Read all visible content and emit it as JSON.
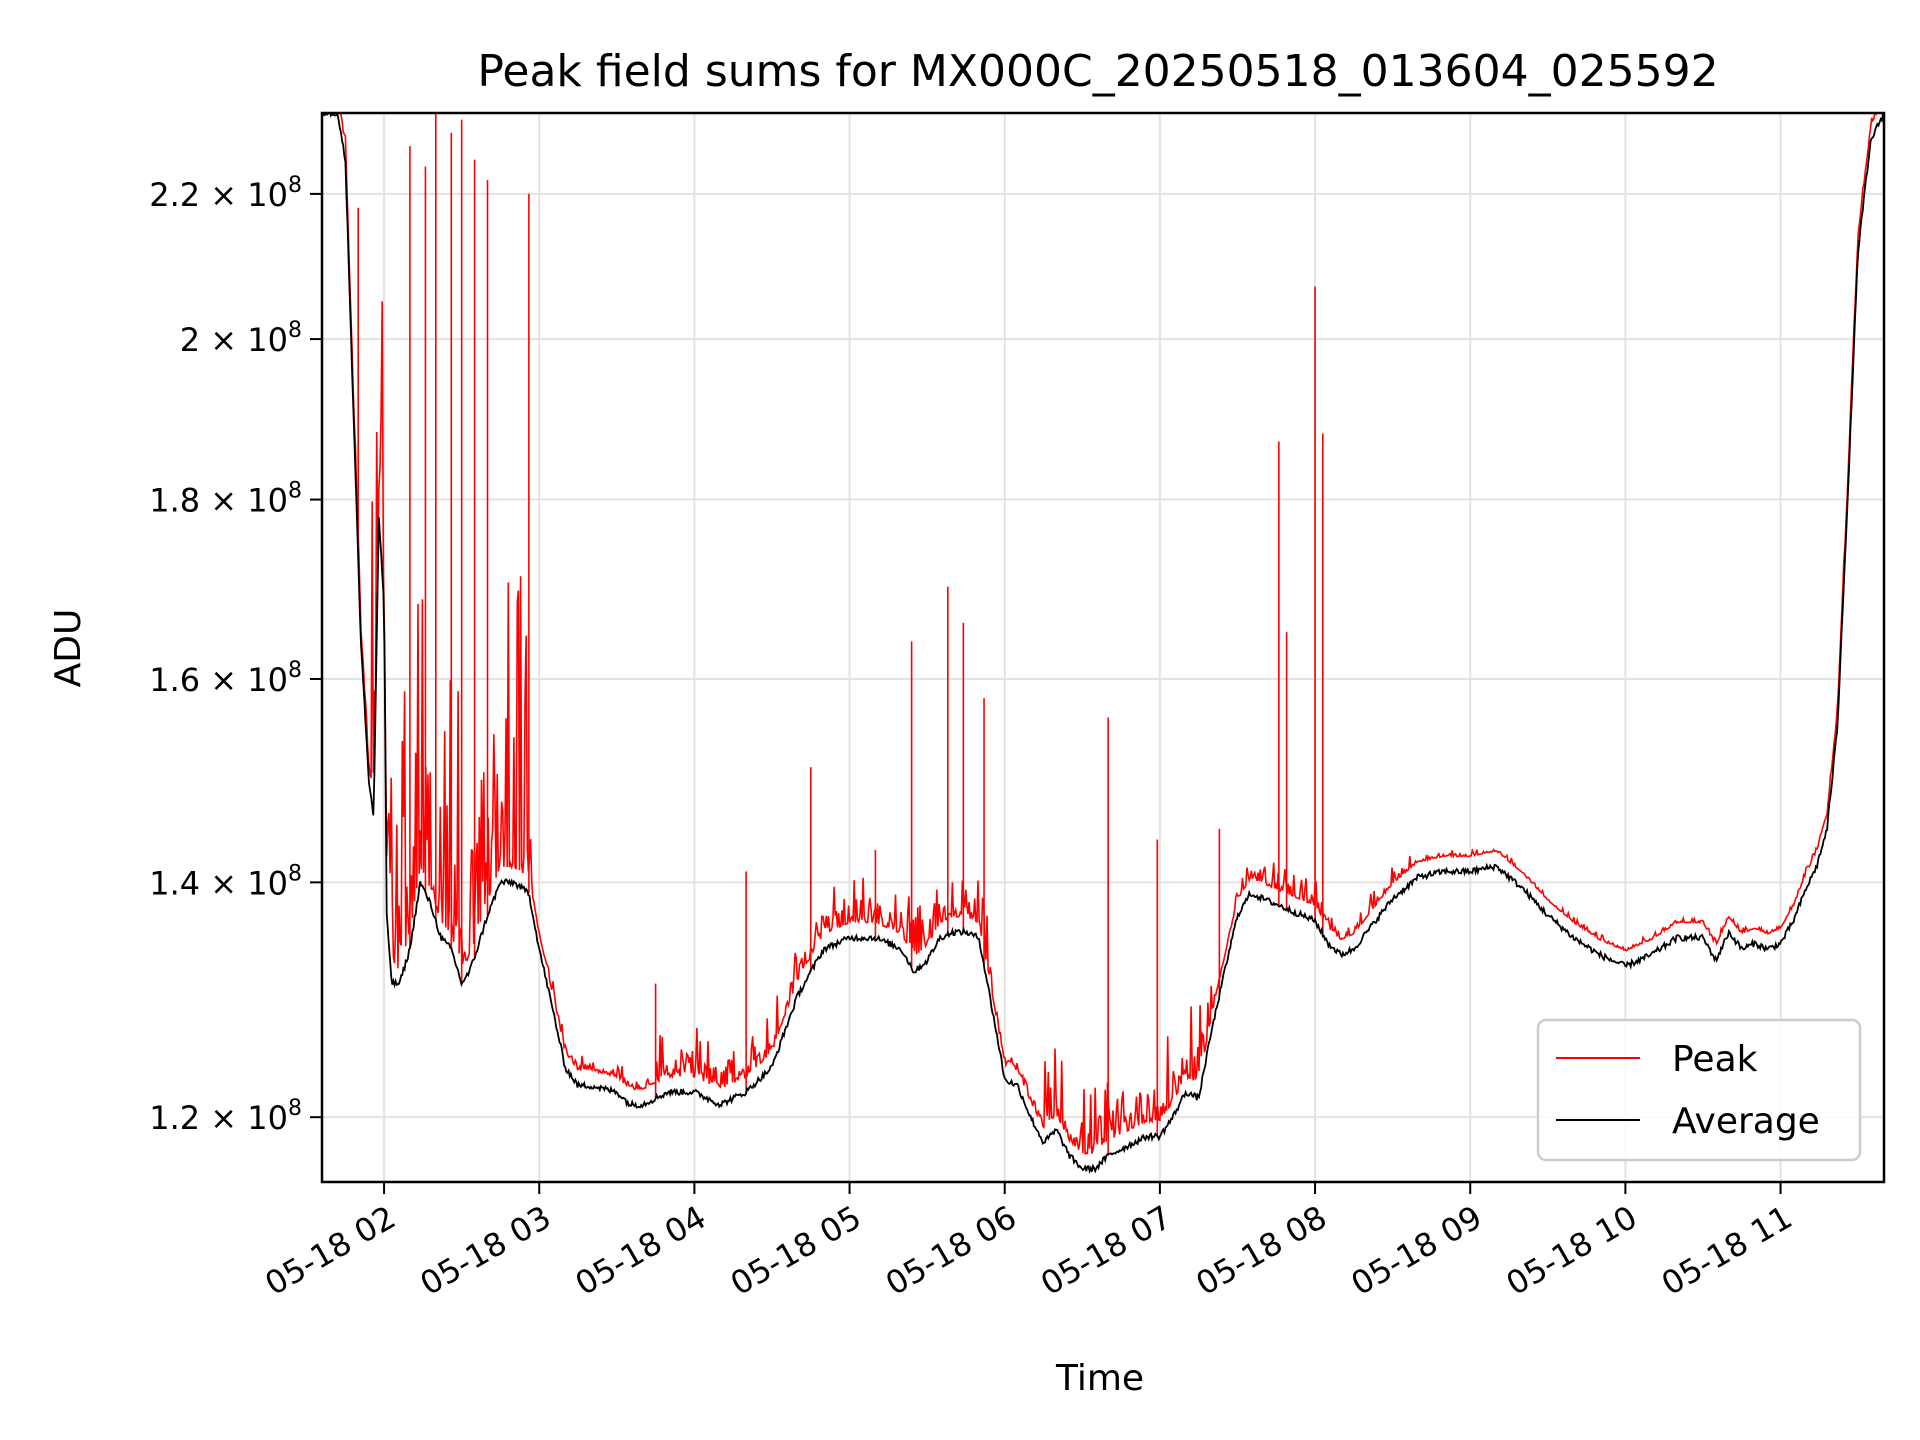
{
  "chart_data": {
    "type": "line",
    "title": "Peak field sums for MX000C_20250518_013604_025592",
    "xlabel": "Time",
    "ylabel": "ADU",
    "yscale": "log",
    "xlim": [
      "05-18 01:36",
      "05-18 11:40"
    ],
    "ylim": [
      115000000,
      232000000
    ],
    "grid": true,
    "legend_position": "lower-right",
    "colors": {
      "peak": "#ff0000",
      "average": "#000000"
    },
    "x_ticks": [
      "05-18 02",
      "05-18 03",
      "05-18 04",
      "05-18 05",
      "05-18 06",
      "05-18 07",
      "05-18 08",
      "05-18 09",
      "05-18 10",
      "05-18 11"
    ],
    "y_ticks": [
      {
        "value": 120000000,
        "mantissa": "1.2",
        "base": "10",
        "exp": "8"
      },
      {
        "value": 140000000,
        "mantissa": "1.4",
        "base": "10",
        "exp": "8"
      },
      {
        "value": 160000000,
        "mantissa": "1.6",
        "base": "10",
        "exp": "8"
      },
      {
        "value": 180000000,
        "mantissa": "1.8",
        "base": "10",
        "exp": "8"
      },
      {
        "value": 200000000,
        "mantissa": "2",
        "base": "10",
        "exp": "8"
      },
      {
        "value": 220000000,
        "mantissa": "2.2",
        "base": "10",
        "exp": "8"
      }
    ],
    "series": [
      {
        "name": "Average",
        "x": [
          "05-18 01:36",
          "05-18 01:42",
          "05-18 01:45",
          "05-18 01:48",
          "05-18 01:51",
          "05-18 01:54",
          "05-18 01:56",
          "05-18 01:58",
          "05-18 02:00",
          "05-18 02:01",
          "05-18 02:03",
          "05-18 02:06",
          "05-18 02:10",
          "05-18 02:14",
          "05-18 02:18",
          "05-18 02:22",
          "05-18 02:26",
          "05-18 02:30",
          "05-18 02:33",
          "05-18 02:36",
          "05-18 02:40",
          "05-18 02:45",
          "05-18 02:50",
          "05-18 02:56",
          "05-18 03:00",
          "05-18 03:05",
          "05-18 03:10",
          "05-18 03:15",
          "05-18 03:20",
          "05-18 03:30",
          "05-18 03:35",
          "05-18 03:40",
          "05-18 03:45",
          "05-18 03:50",
          "05-18 04:00",
          "05-18 04:10",
          "05-18 04:20",
          "05-18 04:30",
          "05-18 04:40",
          "05-18 04:50",
          "05-18 05:00",
          "05-18 05:10",
          "05-18 05:20",
          "05-18 05:25",
          "05-18 05:30",
          "05-18 05:35",
          "05-18 05:40",
          "05-18 05:45",
          "05-18 05:50",
          "05-18 05:55",
          "05-18 06:00",
          "05-18 06:05",
          "05-18 06:10",
          "05-18 06:15",
          "05-18 06:20",
          "05-18 06:25",
          "05-18 06:30",
          "05-18 06:35",
          "05-18 06:40",
          "05-18 06:45",
          "05-18 06:50",
          "05-18 06:55",
          "05-18 07:00",
          "05-18 07:05",
          "05-18 07:10",
          "05-18 07:15",
          "05-18 07:20",
          "05-18 07:25",
          "05-18 07:30",
          "05-18 07:35",
          "05-18 07:40",
          "05-18 07:45",
          "05-18 07:50",
          "05-18 08:00",
          "05-18 08:05",
          "05-18 08:10",
          "05-18 08:15",
          "05-18 08:20",
          "05-18 08:25",
          "05-18 08:30",
          "05-18 08:40",
          "05-18 08:50",
          "05-18 09:00",
          "05-18 09:10",
          "05-18 09:20",
          "05-18 09:30",
          "05-18 09:40",
          "05-18 09:50",
          "05-18 10:00",
          "05-18 10:10",
          "05-18 10:20",
          "05-18 10:30",
          "05-18 10:35",
          "05-18 10:40",
          "05-18 10:45",
          "05-18 10:50",
          "05-18 10:55",
          "05-18 11:00",
          "05-18 11:05",
          "05-18 11:10",
          "05-18 11:14",
          "05-18 11:18",
          "05-18 11:22",
          "05-18 11:26",
          "05-18 11:30",
          "05-18 11:35",
          "05-18 11:40"
        ],
        "values": [
          232000000,
          232000000,
          225000000,
          192000000,
          164000000,
          150000000,
          146000000,
          178000000,
          168000000,
          137000000,
          131000000,
          131000000,
          134000000,
          140000000,
          138000000,
          135000000,
          134000000,
          131000000,
          132000000,
          134000000,
          137000000,
          140000000,
          140000000,
          139000000,
          134000000,
          129000000,
          124000000,
          122500000,
          122500000,
          122000000,
          121000000,
          121000000,
          121500000,
          122000000,
          122000000,
          121000000,
          122000000,
          124000000,
          130000000,
          134000000,
          135000000,
          135000000,
          134000000,
          132000000,
          133000000,
          135000000,
          135500000,
          135500000,
          135000000,
          129000000,
          123000000,
          122500000,
          120000000,
          118000000,
          119000000,
          117000000,
          116000000,
          116000000,
          117000000,
          117500000,
          118000000,
          118500000,
          118500000,
          120000000,
          122000000,
          121500000,
          127000000,
          132000000,
          137000000,
          139000000,
          138500000,
          138000000,
          137500000,
          136500000,
          134500000,
          133500000,
          134000000,
          135500000,
          137000000,
          138500000,
          140500000,
          141000000,
          141000000,
          141500000,
          139500000,
          137000000,
          135000000,
          133500000,
          132500000,
          133500000,
          135000000,
          135000000,
          133000000,
          135500000,
          134000000,
          134500000,
          134000000,
          134500000,
          136500000,
          139500000,
          141500000,
          145000000,
          155000000,
          180000000,
          212000000,
          228000000,
          232000000
        ]
      },
      {
        "name": "Peak",
        "spikes": [
          {
            "x": "05-18 01:50",
            "value": 218000000
          },
          {
            "x": "05-18 02:10",
            "value": 227000000
          },
          {
            "x": "05-18 02:16",
            "value": 224000000
          },
          {
            "x": "05-18 02:20",
            "value": 232000000
          },
          {
            "x": "05-18 02:26",
            "value": 229000000
          },
          {
            "x": "05-18 02:30",
            "value": 231000000
          },
          {
            "x": "05-18 02:35",
            "value": 225000000
          },
          {
            "x": "05-18 02:40",
            "value": 222000000
          },
          {
            "x": "05-18 02:56",
            "value": 220000000
          },
          {
            "x": "05-18 03:45",
            "value": 131000000
          },
          {
            "x": "05-18 04:20",
            "value": 141000000
          },
          {
            "x": "05-18 04:45",
            "value": 151000000
          },
          {
            "x": "05-18 05:10",
            "value": 143000000
          },
          {
            "x": "05-18 05:24",
            "value": 164000000
          },
          {
            "x": "05-18 05:38",
            "value": 170000000
          },
          {
            "x": "05-18 05:44",
            "value": 166000000
          },
          {
            "x": "05-18 05:52",
            "value": 158000000
          },
          {
            "x": "05-18 06:40",
            "value": 156000000
          },
          {
            "x": "05-18 06:59",
            "value": 144000000
          },
          {
            "x": "05-18 07:23",
            "value": 145000000
          },
          {
            "x": "05-18 07:46",
            "value": 187000000
          },
          {
            "x": "05-18 07:49",
            "value": 165000000
          },
          {
            "x": "05-18 08:00",
            "value": 207000000
          },
          {
            "x": "05-18 08:03",
            "value": 188000000
          }
        ]
      }
    ]
  }
}
